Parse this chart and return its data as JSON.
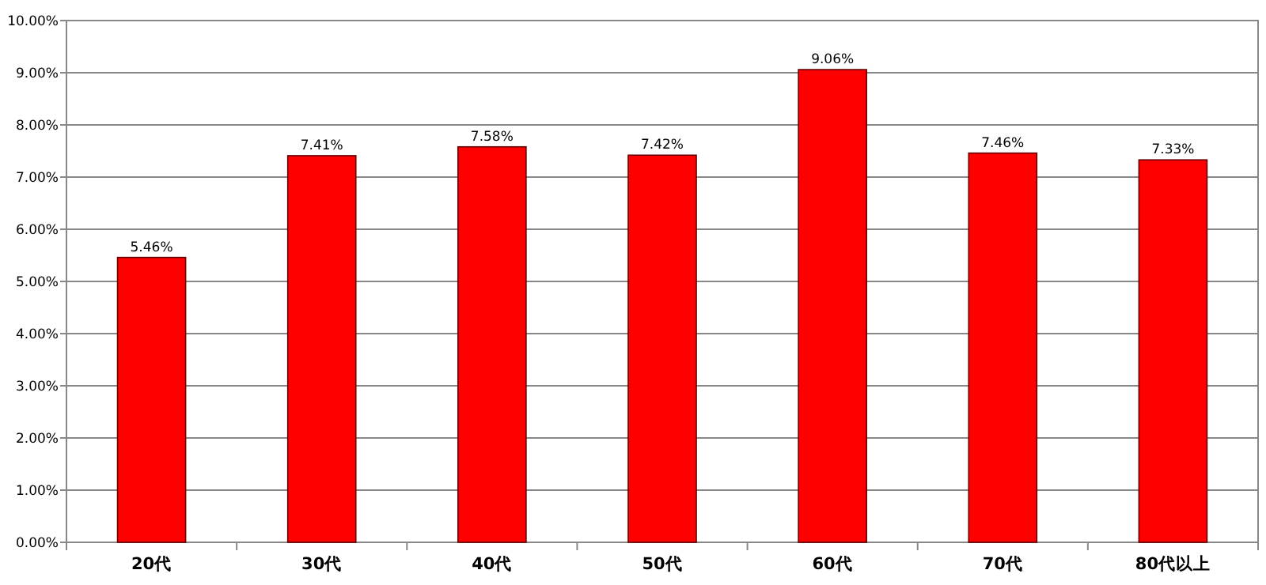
{
  "chart_data": {
    "type": "bar",
    "categories": [
      "20代",
      "30代",
      "40代",
      "50代",
      "60代",
      "70代",
      "80代以上"
    ],
    "values": [
      5.46,
      7.41,
      7.58,
      7.42,
      9.06,
      7.46,
      7.33
    ],
    "value_labels": [
      "5.46%",
      "7.41%",
      "7.58%",
      "7.42%",
      "9.06%",
      "7.46%",
      "7.33%"
    ],
    "color": "#ff0000",
    "ylim": [
      0,
      10
    ],
    "yticks": [
      {
        "value": 0,
        "label": "0.00%"
      },
      {
        "value": 1,
        "label": "1.00%"
      },
      {
        "value": 2,
        "label": "2.00%"
      },
      {
        "value": 3,
        "label": "3.00%"
      },
      {
        "value": 4,
        "label": "4.00%"
      },
      {
        "value": 5,
        "label": "5.00%"
      },
      {
        "value": 6,
        "label": "6.00%"
      },
      {
        "value": 7,
        "label": "7.00%"
      },
      {
        "value": 8,
        "label": "8.00%"
      },
      {
        "value": 9,
        "label": "9.00%"
      },
      {
        "value": 10,
        "label": "10.00%"
      }
    ],
    "grid": "y"
  }
}
